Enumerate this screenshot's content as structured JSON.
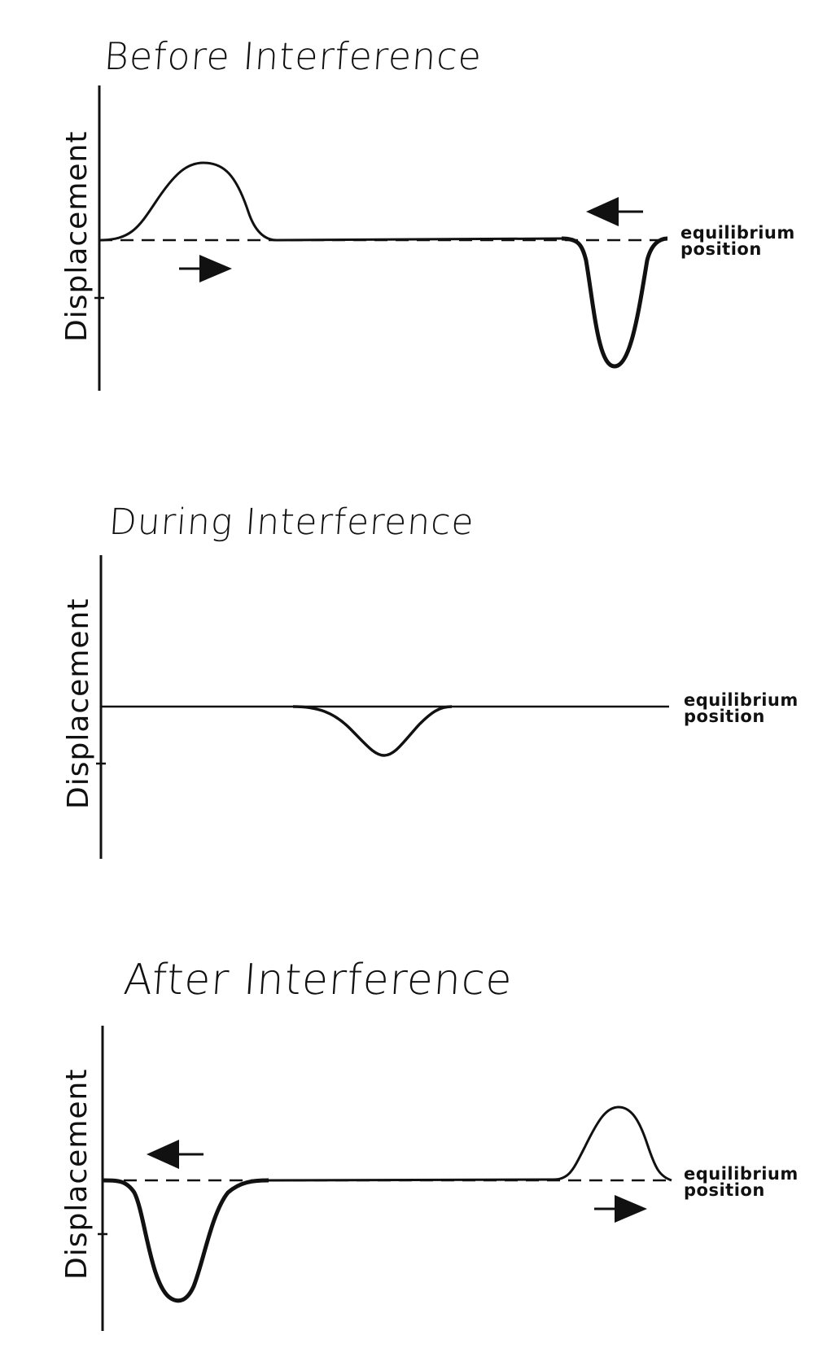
{
  "panels": [
    {
      "title": "Before Interference",
      "ylabel": "Displacement",
      "equilibrium_line1": "equilibrium",
      "equilibrium_line2": "position"
    },
    {
      "title": "During Interference",
      "ylabel": "Displacement",
      "equilibrium_line1": "equilibrium",
      "equilibrium_line2": "position"
    },
    {
      "title": "After Interference",
      "ylabel": "Displacement",
      "equilibrium_line1": "equilibrium",
      "equilibrium_line2": "position"
    }
  ],
  "colors": {
    "ink": "#111111",
    "background": "#ffffff"
  }
}
